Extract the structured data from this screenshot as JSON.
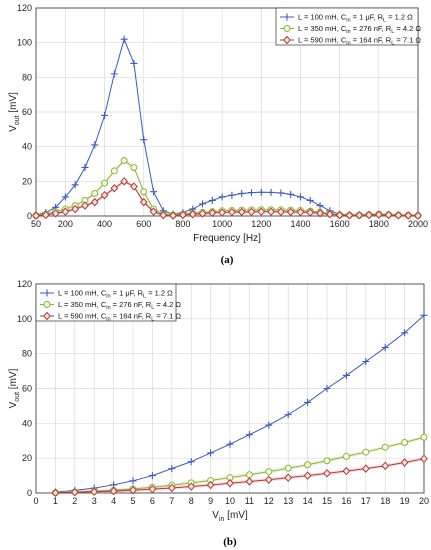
{
  "chart_data": [
    {
      "type": "line",
      "panel": "(a)",
      "xlabel": "Frequency [Hz]",
      "ylabel": "V",
      "ylabel_sub": "out",
      "ylabel_unit": " [mV]",
      "xlim": [
        50,
        2000
      ],
      "ylim": [
        0,
        120
      ],
      "xticks": [
        50,
        200,
        400,
        600,
        800,
        1000,
        1200,
        1400,
        1600,
        1800,
        2000
      ],
      "yticks": [
        0,
        20,
        40,
        60,
        80,
        100,
        120
      ],
      "grid": true,
      "legend_position": "top-right",
      "x": [
        50,
        100,
        150,
        200,
        250,
        300,
        350,
        400,
        450,
        500,
        550,
        600,
        650,
        700,
        750,
        800,
        850,
        900,
        950,
        1000,
        1050,
        1100,
        1150,
        1200,
        1250,
        1300,
        1350,
        1400,
        1450,
        1500,
        1550,
        1600,
        1650,
        1700,
        1750,
        1800,
        1850,
        1900,
        1950,
        2000
      ],
      "series": [
        {
          "name": "L = 100 mH, C",
          "name_sub": "in",
          "name_mid": " = 1 μF, R",
          "name_sub2": "L",
          "name_end": " = 1.2 Ω",
          "color": "#3b5bbf",
          "marker": "plus",
          "values": [
            0.5,
            2,
            5,
            11,
            18,
            28,
            41,
            58,
            82,
            102,
            88,
            44,
            14,
            3,
            1,
            2,
            4,
            7,
            9,
            11,
            12,
            13,
            13.5,
            13.7,
            13.6,
            13.3,
            12.5,
            11,
            9,
            6,
            3,
            1,
            0.5,
            0.5,
            0.5,
            0.5,
            0.3,
            0.3,
            0.3,
            0.3
          ]
        },
        {
          "name": "L = 350 mH, C",
          "name_sub": "in",
          "name_mid": " = 276 nF, R",
          "name_sub2": "L",
          "name_end": " = 4.2 Ω",
          "color": "#8db33a",
          "marker": "circle",
          "values": [
            0.3,
            1,
            2.5,
            4,
            6,
            9,
            13,
            19,
            26,
            32,
            28,
            14,
            4,
            1,
            0.5,
            1,
            1.5,
            2,
            2.5,
            3,
            3.2,
            3.4,
            3.5,
            3.6,
            3.6,
            3.5,
            3.4,
            3.2,
            2.8,
            2.2,
            1.2,
            0.6,
            0.5,
            0.5,
            0.8,
            1,
            0.8,
            0.5,
            0.4,
            0.3
          ]
        },
        {
          "name": "L = 590 mH, C",
          "name_sub": "in",
          "name_mid": " = 164 nF, R",
          "name_sub2": "L",
          "name_end": " = 7.1 Ω",
          "color": "#b23a2e",
          "marker": "diamond",
          "values": [
            0.2,
            0.6,
            1.5,
            2.5,
            4,
            6,
            8,
            12,
            16,
            20,
            17,
            8,
            2.5,
            0.5,
            0.3,
            0.6,
            1,
            1.4,
            1.8,
            2,
            2.2,
            2.3,
            2.4,
            2.5,
            2.5,
            2.4,
            2.3,
            2.2,
            2,
            1.6,
            1,
            0.5,
            0.4,
            0.4,
            0.6,
            0.8,
            0.6,
            0.4,
            0.3,
            0.2
          ]
        }
      ]
    },
    {
      "type": "line",
      "panel": "(b)",
      "xlabel": "V",
      "xlabel_sub": "in",
      "xlabel_unit": " [mV]",
      "ylabel": "V",
      "ylabel_sub": "out",
      "ylabel_unit": " [mV]",
      "xlim": [
        0,
        20
      ],
      "ylim": [
        0,
        120
      ],
      "xticks": [
        0,
        1,
        2,
        3,
        4,
        5,
        6,
        7,
        8,
        9,
        10,
        11,
        12,
        13,
        14,
        15,
        16,
        17,
        18,
        19,
        20
      ],
      "yticks": [
        0,
        20,
        40,
        60,
        80,
        100,
        120
      ],
      "grid": true,
      "legend_position": "top-left",
      "x": [
        1,
        2,
        3,
        4,
        5,
        6,
        7,
        8,
        9,
        10,
        11,
        12,
        13,
        14,
        15,
        16,
        17,
        18,
        19,
        20
      ],
      "series": [
        {
          "name": "L = 100 mH, C",
          "name_sub": "in",
          "name_mid": " = 1 μF, R",
          "name_sub2": "L",
          "name_end": " = 1.2 Ω",
          "color": "#3b5bbf",
          "marker": "plus",
          "values": [
            0.5,
            1.5,
            2.8,
            4.7,
            7,
            10,
            14,
            18,
            23,
            28,
            33.5,
            39,
            45,
            52,
            60,
            67.5,
            75.5,
            83.5,
            92,
            102
          ]
        },
        {
          "name": "L = 350 mH, C",
          "name_sub": "in",
          "name_mid": " = 276 nF, R",
          "name_sub2": "L",
          "name_end": " = 4.2 Ω",
          "color": "#8db33a",
          "marker": "circle",
          "values": [
            0.2,
            0.6,
            1,
            1.6,
            2.4,
            3.3,
            4.5,
            5.8,
            7.2,
            8.8,
            10.5,
            12.3,
            14.2,
            16.2,
            18.5,
            21,
            23.5,
            26.3,
            29,
            32
          ]
        },
        {
          "name": "L = 590 mH, C",
          "name_sub": "in",
          "name_mid": " = 164 nF, R",
          "name_sub2": "L",
          "name_end": " = 7.1 Ω",
          "color": "#b23a2e",
          "marker": "diamond",
          "values": [
            0.1,
            0.4,
            0.7,
            1.1,
            1.6,
            2.2,
            2.9,
            3.7,
            4.6,
            5.6,
            6.6,
            7.6,
            8.8,
            10,
            11.3,
            12.6,
            14,
            15.6,
            17.5,
            19.7
          ]
        }
      ]
    }
  ]
}
